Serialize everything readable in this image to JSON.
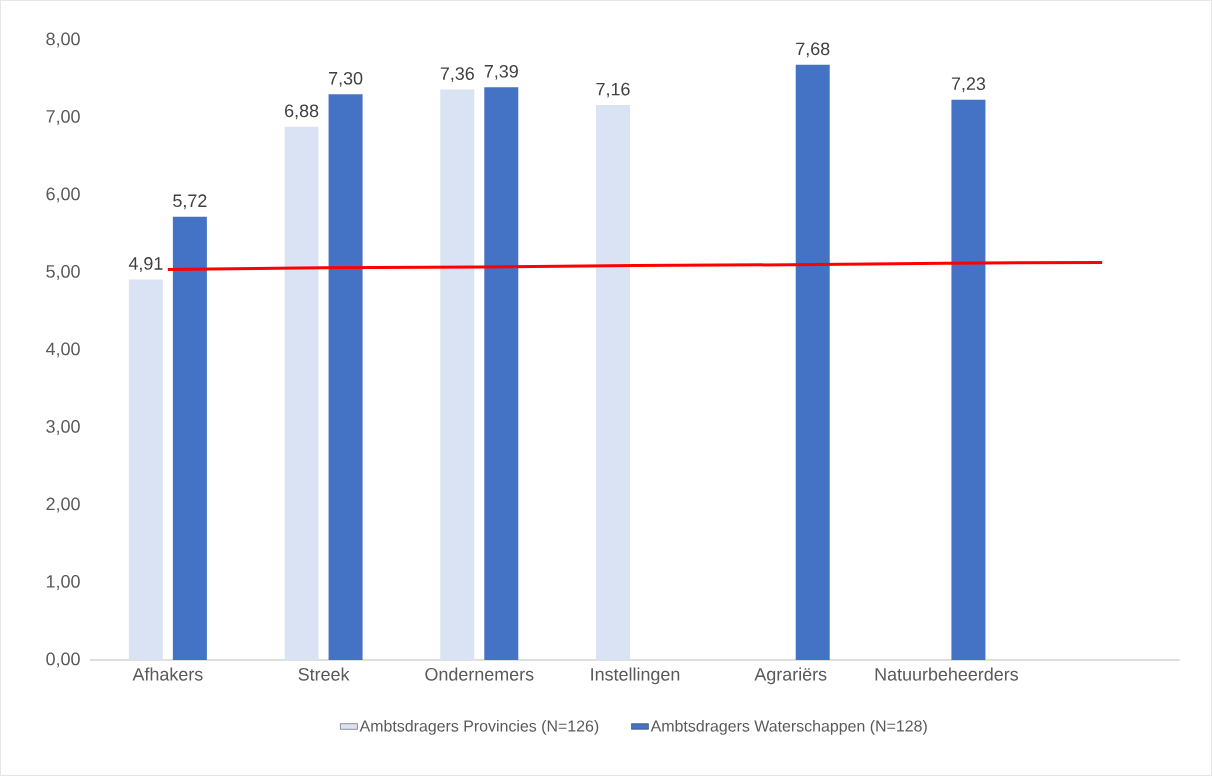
{
  "chart_data": {
    "type": "bar",
    "categories": [
      "Afhakers",
      "Streek",
      "Ondernemers",
      "Instellingen",
      "Agrariërs",
      "Natuurbeheerders",
      null
    ],
    "series": [
      {
        "name": "Ambtsdragers Provincies (N=126)",
        "color": "#dae3f3",
        "values": [
          4.91,
          6.88,
          7.36,
          7.16,
          null,
          null,
          null
        ],
        "value_labels": [
          "4,91",
          "6,88",
          "7,36",
          "7,16",
          null,
          null,
          null
        ]
      },
      {
        "name": "Ambtsdragers Waterschappen (N=128)",
        "color": "#4472c4",
        "values": [
          5.72,
          7.3,
          7.39,
          null,
          7.68,
          7.23,
          null
        ],
        "value_labels": [
          "5,72",
          "7,30",
          "7,39",
          null,
          "7,68",
          "7,23",
          null
        ]
      },
      {
        "type": "line",
        "color": "#ff0000",
        "values": [
          5.04,
          5.06,
          5.07,
          5.09,
          5.1,
          5.12,
          5.13
        ]
      }
    ],
    "ylim": [
      0,
      8
    ],
    "yticks": [
      {
        "value": 0,
        "label": "0,00"
      },
      {
        "value": 1,
        "label": "1,00"
      },
      {
        "value": 2,
        "label": "2,00"
      },
      {
        "value": 3,
        "label": "3,00"
      },
      {
        "value": 4,
        "label": "4,00"
      },
      {
        "value": 5,
        "label": "5,00"
      },
      {
        "value": 6,
        "label": "6,00"
      },
      {
        "value": 7,
        "label": "7,00"
      },
      {
        "value": 8,
        "label": "8,00"
      }
    ],
    "grid": false,
    "legend": "bottom"
  }
}
